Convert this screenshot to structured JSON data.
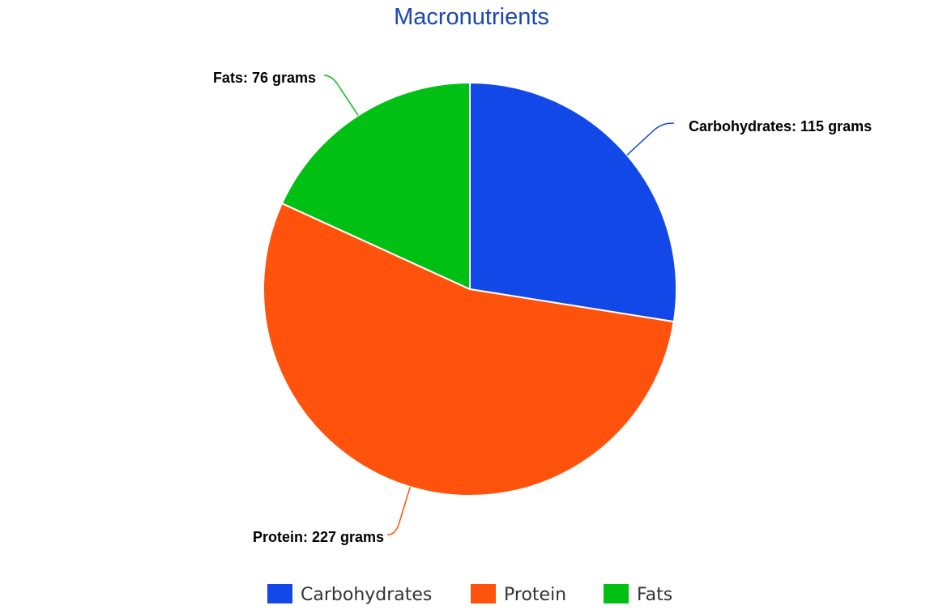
{
  "chart_data": {
    "type": "pie",
    "title": "Macronutrients",
    "unit": "grams",
    "slices": [
      {
        "name": "Carbohydrates",
        "value": 115,
        "label": "Carbohydrates: 115 grams",
        "color": "#1348e8"
      },
      {
        "name": "Protein",
        "value": 227,
        "label": "Protein: 227 grams",
        "color": "#ff530d"
      },
      {
        "name": "Fats",
        "value": 76,
        "label": "Fats: 76 grams",
        "color": "#00c113"
      }
    ],
    "legend": {
      "position": "bottom",
      "entries": [
        "Carbohydrates",
        "Protein",
        "Fats"
      ]
    },
    "title_color": "#1947b3"
  }
}
